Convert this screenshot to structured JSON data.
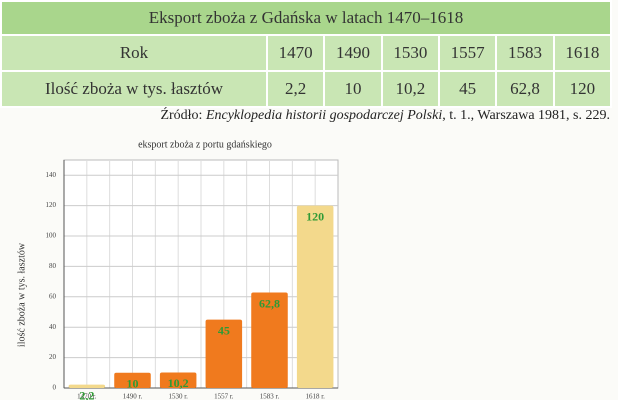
{
  "table": {
    "title": "Eksport zboża z Gdańska w latach 1470–1618",
    "rows": [
      [
        "Rok",
        "1470",
        "1490",
        "1530",
        "1557",
        "1583",
        "1618"
      ],
      [
        "Ilość zboża w tys. łasztów",
        "2,2",
        "10",
        "10,2",
        "45",
        "62,8",
        "120"
      ]
    ]
  },
  "source": {
    "prefix": "Źródło:",
    "title": "Encyklopedia historii gospodarczej Polski",
    "rest": ", t. 1., Warszawa 1981, s. 229."
  },
  "chart_data": {
    "type": "bar",
    "title": "eksport zboża z portu gdańskiego",
    "y_label": "ilość zboża w tys. łasztów",
    "categories": [
      "1470 r.",
      "1490 r.",
      "1530 r.",
      "1557 r.",
      "1583 r.",
      "1618 r."
    ],
    "values": [
      2.2,
      10,
      10.2,
      45,
      62.8,
      120
    ],
    "value_labels": [
      "2,2",
      "10",
      "10,2",
      "45",
      "62,8",
      "120"
    ],
    "colors": [
      "#f3d98c",
      "#f07a1e",
      "#f07a1e",
      "#f07a1e",
      "#f07a1e",
      "#f3d98c"
    ],
    "label_color": "#2f9a35",
    "ylim": [
      0,
      150
    ],
    "yticks": [
      0,
      20,
      40,
      60,
      80,
      100,
      120,
      140
    ],
    "grid": true
  }
}
